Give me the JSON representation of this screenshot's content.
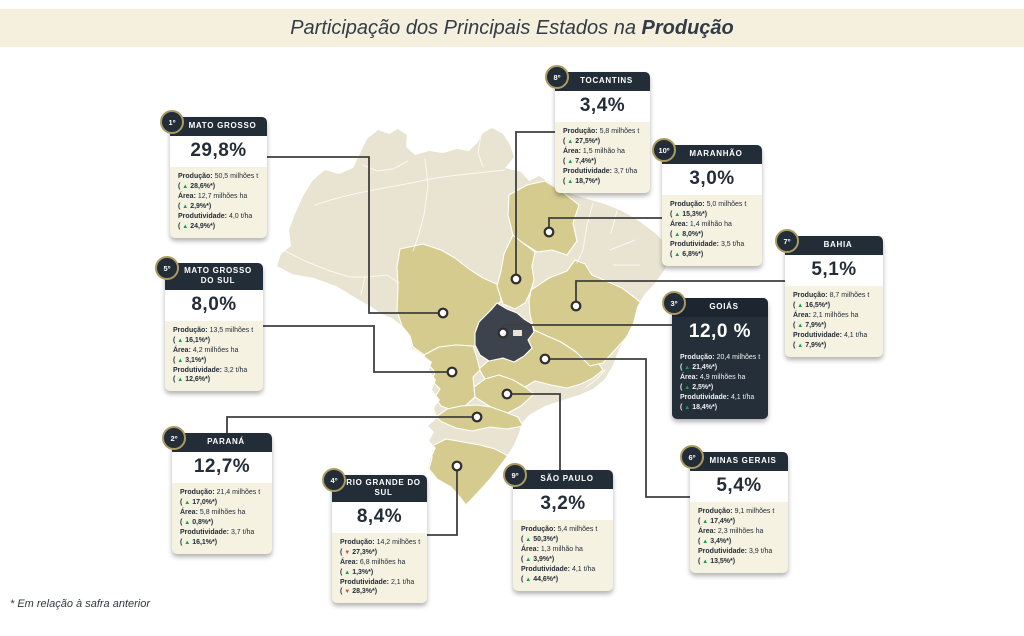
{
  "title": {
    "prefix": "Participação dos Principais Estados na ",
    "bold": "Produção"
  },
  "footnote": "* Em relação à safra anterior",
  "punct": {
    "open": "( ",
    "close": ")"
  },
  "colors": {
    "accent_dark": "#232d38",
    "khaki_state": "#d5cb8f",
    "beige_state": "#e9e4d1",
    "goias_state": "#3d434c",
    "up_green": "#14a04b",
    "down_red": "#d8403c",
    "cream": "#f4f0dd"
  },
  "cards": [
    {
      "rank": "1º",
      "state": "MATO GROSSO",
      "share": "29,8%",
      "metrics": [
        {
          "label": "Produção:",
          "value": "50,5 milhões t",
          "arrow": "▲",
          "arrow_class": "arr up",
          "change": "28,6%*"
        },
        {
          "label": "Área:",
          "value": "12,7 milhões ha",
          "arrow": "▲",
          "arrow_class": "arr up",
          "change": "2,9%*"
        },
        {
          "label": "Produtividade:",
          "value": "4,0 t/ha",
          "arrow": "▲",
          "arrow_class": "arr up",
          "change": "24,9%*"
        }
      ]
    },
    {
      "rank": "2º",
      "state": "PARANÁ",
      "share": "12,7%",
      "metrics": [
        {
          "label": "Produção:",
          "value": "21,4 milhões t",
          "arrow": "▲",
          "arrow_class": "arr up",
          "change": "17,0%*"
        },
        {
          "label": "Área:",
          "value": "5,8 milhões ha",
          "arrow": "▲",
          "arrow_class": "arr up",
          "change": "0,8%*"
        },
        {
          "label": "Produtividade:",
          "value": "3,7 t/ha",
          "arrow": "▲",
          "arrow_class": "arr up",
          "change": "16,1%*"
        }
      ]
    },
    {
      "rank": "3º",
      "state": "GOIÁS",
      "share": "12,0 %",
      "metrics": [
        {
          "label": "Produção:",
          "value": "20,4 milhões t",
          "arrow": "▲",
          "arrow_class": "arr up",
          "change": "21,4%*"
        },
        {
          "label": "Área:",
          "value": "4,9 milhões ha",
          "arrow": "▲",
          "arrow_class": "arr up",
          "change": "2,5%*"
        },
        {
          "label": "Produtividade:",
          "value": "4,1 t/ha",
          "arrow": "▲",
          "arrow_class": "arr up",
          "change": "18,4%*"
        }
      ]
    },
    {
      "rank": "4º",
      "state": "RIO GRANDE DO SUL",
      "share": "8,4%",
      "metrics": [
        {
          "label": "Produção:",
          "value": "14,2 milhões t",
          "arrow": "▼",
          "arrow_class": "arr down",
          "change": "27,3%*"
        },
        {
          "label": "Área:",
          "value": "6,8 milhões ha",
          "arrow": "▲",
          "arrow_class": "arr up",
          "change": "1,3%*"
        },
        {
          "label": "Produtividade:",
          "value": "2,1 t/ha",
          "arrow": "▼",
          "arrow_class": "arr down",
          "change": "28,3%*"
        }
      ]
    },
    {
      "rank": "5º",
      "state": "MATO GROSSO DO SUL",
      "share": "8,0%",
      "metrics": [
        {
          "label": "Produção:",
          "value": "13,5 milhões t",
          "arrow": "▲",
          "arrow_class": "arr up",
          "change": "16,1%*"
        },
        {
          "label": "Área:",
          "value": "4,2 milhões ha",
          "arrow": "▲",
          "arrow_class": "arr up",
          "change": "3,1%*"
        },
        {
          "label": "Produtividade:",
          "value": "3,2 t/ha",
          "arrow": "▲",
          "arrow_class": "arr up",
          "change": "12,6%*"
        }
      ]
    },
    {
      "rank": "6º",
      "state": "MINAS GERAIS",
      "share": "5,4%",
      "metrics": [
        {
          "label": "Produção:",
          "value": "9,1 milhões t",
          "arrow": "▲",
          "arrow_class": "arr up",
          "change": "17,4%*"
        },
        {
          "label": "Área:",
          "value": "2,3 milhões ha",
          "arrow": "▲",
          "arrow_class": "arr up",
          "change": "3,4%*"
        },
        {
          "label": "Produtividade:",
          "value": "3,9 t/ha",
          "arrow": "▲",
          "arrow_class": "arr up",
          "change": "13,5%*"
        }
      ]
    },
    {
      "rank": "7º",
      "state": "BAHIA",
      "share": "5,1%",
      "metrics": [
        {
          "label": "Produção:",
          "value": "8,7 milhões t",
          "arrow": "▲",
          "arrow_class": "arr up",
          "change": "16,5%*"
        },
        {
          "label": "Área:",
          "value": "2,1 milhões ha",
          "arrow": "▲",
          "arrow_class": "arr up",
          "change": "7,9%*"
        },
        {
          "label": "Produtividade:",
          "value": "4,1 t/ha",
          "arrow": "▲",
          "arrow_class": "arr up",
          "change": "7,9%*"
        }
      ]
    },
    {
      "rank": "8º",
      "state": "TOCANTINS",
      "share": "3,4%",
      "metrics": [
        {
          "label": "Produção:",
          "value": "5,8 milhões t",
          "arrow": "▲",
          "arrow_class": "arr up",
          "change": "27,5%*"
        },
        {
          "label": "Área:",
          "value": "1,5 milhão ha",
          "arrow": "▲",
          "arrow_class": "arr up",
          "change": "7,4%*"
        },
        {
          "label": "Produtividade:",
          "value": "3,7 t/ha",
          "arrow": "▲",
          "arrow_class": "arr up",
          "change": "18,7%*"
        }
      ]
    },
    {
      "rank": "9º",
      "state": "SÃO PAULO",
      "share": "3,2%",
      "metrics": [
        {
          "label": "Produção:",
          "value": "5,4 milhões t",
          "arrow": "▲",
          "arrow_class": "arr up",
          "change": "50,3%*"
        },
        {
          "label": "Área:",
          "value": "1,3 milhão ha",
          "arrow": "▲",
          "arrow_class": "arr up",
          "change": "3,9%*"
        },
        {
          "label": "Produtividade:",
          "value": "4,1 t/ha",
          "arrow": "▲",
          "arrow_class": "arr up",
          "change": "44,6%*"
        }
      ]
    },
    {
      "rank": "10º",
      "state": "MARANHÃO",
      "share": "3,0%",
      "metrics": [
        {
          "label": "Produção:",
          "value": "5,0 milhões t",
          "arrow": "▲",
          "arrow_class": "arr up",
          "change": "15,3%*"
        },
        {
          "label": "Área:",
          "value": "1,4 milhão ha",
          "arrow": "▲",
          "arrow_class": "arr up",
          "change": "8,0%*"
        },
        {
          "label": "Produtividade:",
          "value": "3,5 t/ha",
          "arrow": "▲",
          "arrow_class": "arr up",
          "change": "6,8%*"
        }
      ]
    }
  ]
}
